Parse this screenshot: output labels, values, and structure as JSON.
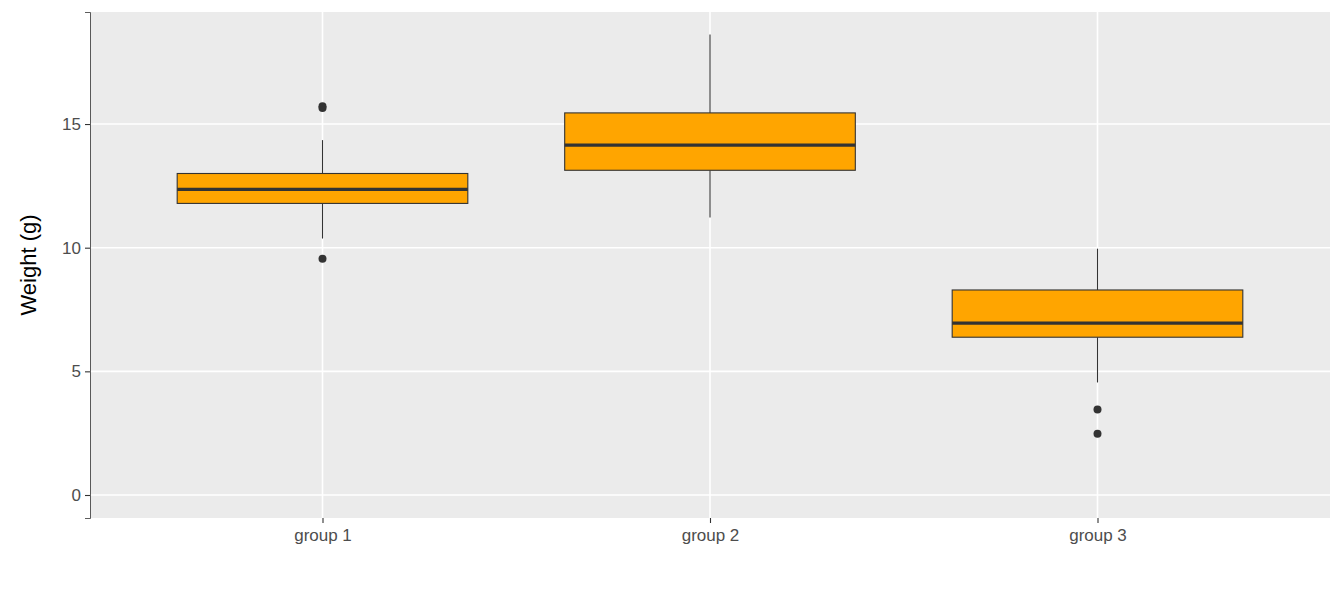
{
  "chart_data": {
    "type": "box",
    "y_label": "Weight (g)",
    "categories": [
      "group 1",
      "group 2",
      "group 3"
    ],
    "boxes": [
      {
        "whisker_low": 10.37,
        "q1": 11.79,
        "median": 12.36,
        "q3": 13.0,
        "whisker_high": 14.35,
        "outliers": [
          15.65,
          15.72,
          9.55
        ]
      },
      {
        "whisker_low": 11.22,
        "q1": 13.13,
        "median": 14.15,
        "q3": 15.45,
        "whisker_high": 18.62,
        "outliers": []
      },
      {
        "whisker_low": 4.55,
        "q1": 6.38,
        "median": 6.95,
        "q3": 8.29,
        "whisker_high": 9.96,
        "outliers": [
          3.46,
          2.48
        ]
      }
    ],
    "color": "#FFA500",
    "ylim": [
      -0.93,
      19.53
    ],
    "yticks": [
      0,
      5,
      10,
      15
    ],
    "grid": true
  }
}
